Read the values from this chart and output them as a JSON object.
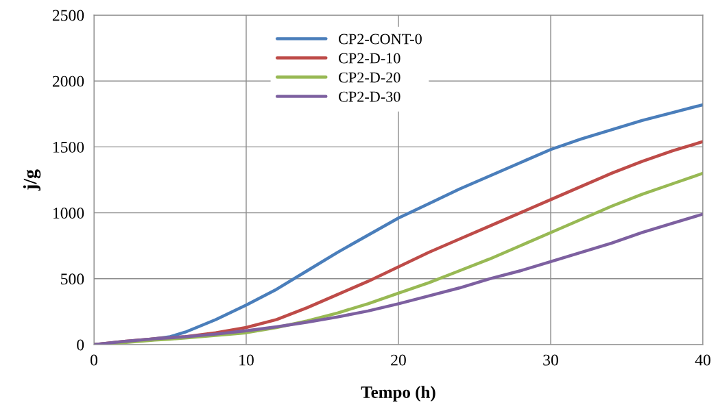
{
  "chart_data": {
    "type": "line",
    "xlabel": "Tempo (h)",
    "ylabel": "j/g",
    "x": [
      0,
      2,
      4,
      5,
      6,
      8,
      10,
      12,
      14,
      16,
      18,
      20,
      22,
      24,
      26,
      28,
      30,
      32,
      34,
      36,
      38,
      40
    ],
    "series": [
      {
        "name": "CP2-CONT-0",
        "color": "#4a7ebb",
        "values": [
          0,
          20,
          45,
          60,
          95,
          190,
          300,
          420,
          560,
          700,
          830,
          960,
          1070,
          1180,
          1280,
          1380,
          1480,
          1560,
          1630,
          1700,
          1760,
          1820
        ]
      },
      {
        "name": "CP2-D-10",
        "color": "#be4b48",
        "values": [
          0,
          25,
          45,
          52,
          60,
          90,
          130,
          190,
          280,
          380,
          480,
          590,
          700,
          800,
          900,
          1000,
          1100,
          1200,
          1300,
          1390,
          1470,
          1540
        ]
      },
      {
        "name": "CP2-D-20",
        "color": "#98b954",
        "values": [
          0,
          15,
          35,
          42,
          50,
          70,
          90,
          130,
          180,
          240,
          310,
          390,
          470,
          560,
          650,
          750,
          850,
          950,
          1050,
          1140,
          1220,
          1300
        ]
      },
      {
        "name": "CP2-D-30",
        "color": "#7d60a0",
        "values": [
          0,
          25,
          45,
          52,
          60,
          80,
          105,
          135,
          170,
          210,
          255,
          310,
          370,
          430,
          500,
          560,
          630,
          700,
          770,
          850,
          920,
          990
        ]
      }
    ],
    "xlim": [
      0,
      40
    ],
    "xticks": [
      0,
      10,
      20,
      30,
      40
    ],
    "ylim": [
      0,
      2500
    ],
    "yticks": [
      0,
      500,
      1000,
      1500,
      2000,
      2500
    ],
    "grid": true,
    "legend": "top",
    "marker": "none",
    "line_style": "solid"
  }
}
